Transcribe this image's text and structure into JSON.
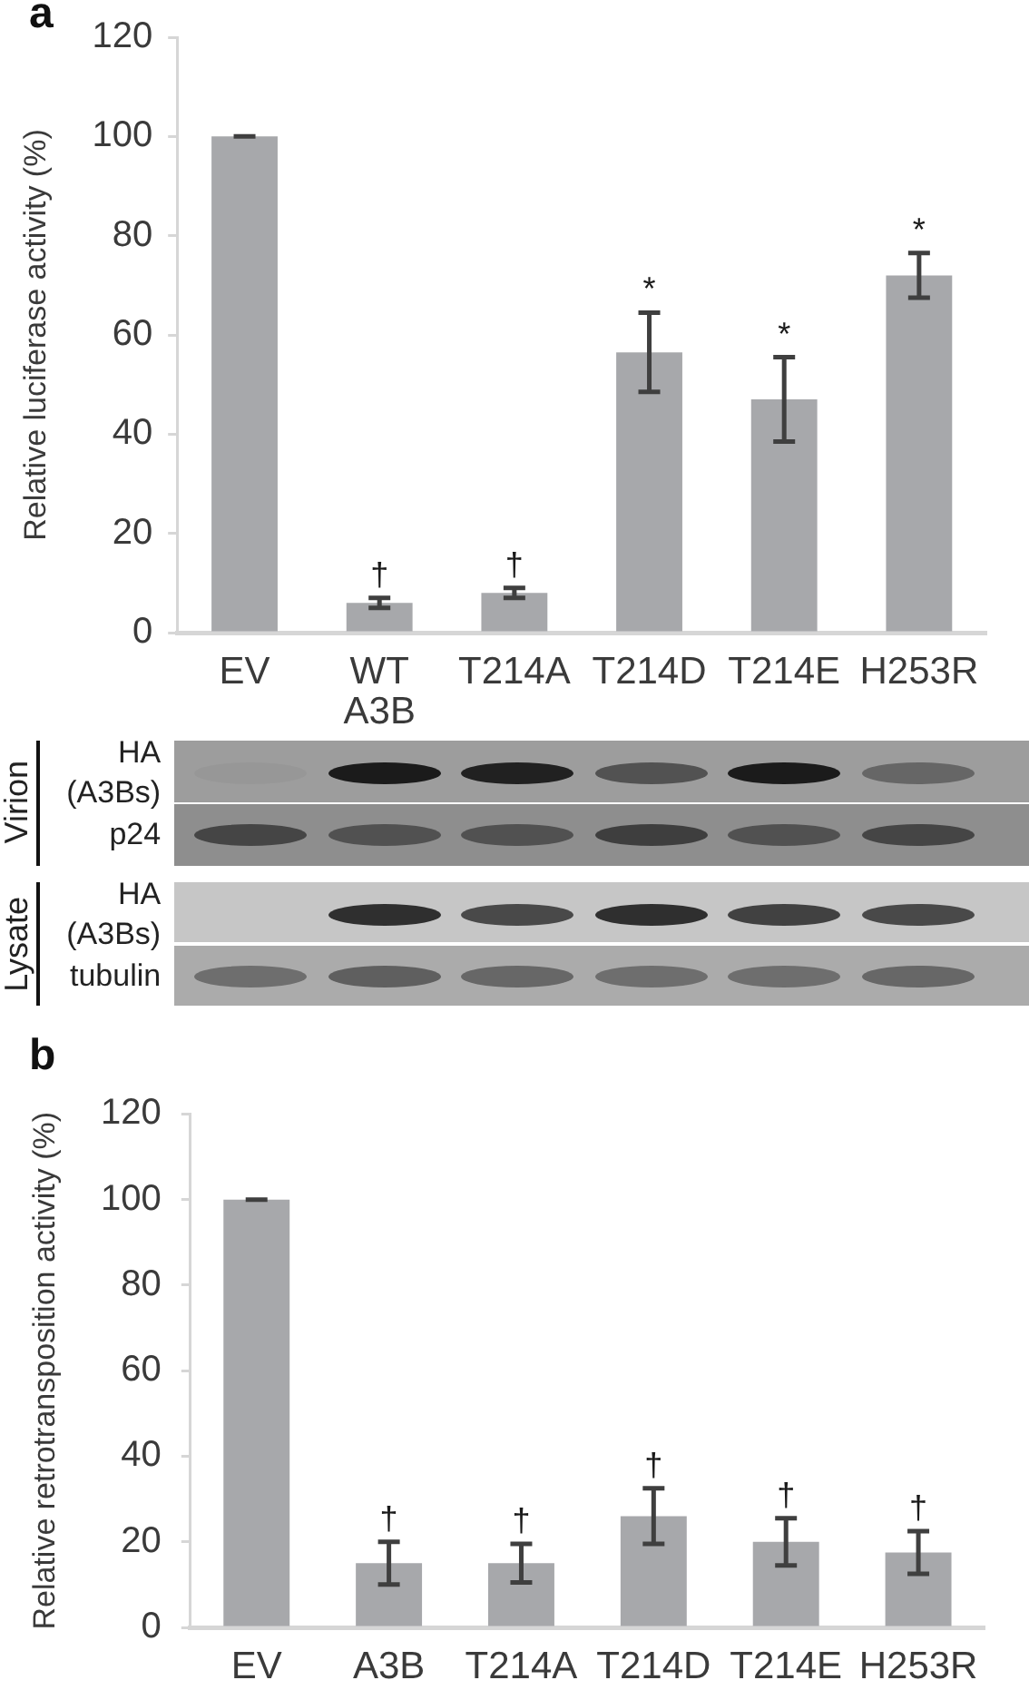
{
  "chart_data": [
    {
      "type": "bar",
      "title": "a",
      "ylabel": "Relative luciferase activity (%)",
      "categories": [
        "EV",
        "WT A3B",
        "T214A",
        "T214D",
        "T214E",
        "H253R"
      ],
      "values": [
        100,
        6,
        8,
        56.5,
        47,
        72
      ],
      "errors": [
        0,
        1,
        1,
        8,
        8.5,
        4.5
      ],
      "color": "#a7a8ab",
      "ylim": [
        0,
        120
      ],
      "yticks": [
        0,
        20,
        40,
        60,
        80,
        100,
        120
      ],
      "annotations": [
        {
          "text": "†",
          "x": "WT A3B",
          "y": 6
        },
        {
          "text": "†",
          "x": "T214A",
          "y": 8
        },
        {
          "text": "*",
          "x": "T214D",
          "y": 56.5
        },
        {
          "text": "*",
          "x": "T214E",
          "y": 47
        },
        {
          "text": "*",
          "x": "H253R",
          "y": 72
        }
      ]
    },
    {
      "type": "other",
      "annotations": [
        "Virion",
        "HA (A3Bs)",
        "p24",
        "Lysate",
        "HA (A3Bs)",
        "tubulin"
      ]
    },
    {
      "type": "bar",
      "title": "b",
      "ylabel": "Relative retrotransposition activity (%)",
      "categories": [
        "EV",
        "A3B",
        "T214A",
        "T214D",
        "T214E",
        "H253R"
      ],
      "values": [
        100,
        15,
        15,
        26,
        20,
        17.5
      ],
      "errors": [
        0,
        5,
        4.5,
        6.5,
        5.5,
        5
      ],
      "color": "#a7a8ab",
      "ylim": [
        0,
        120
      ],
      "yticks": [
        0,
        20,
        40,
        60,
        80,
        100,
        120
      ],
      "annotations": [
        {
          "text": "†",
          "x": "A3B",
          "y": 15
        },
        {
          "text": "†",
          "x": "T214A",
          "y": 15
        },
        {
          "text": "†",
          "x": "T214D",
          "y": 26
        },
        {
          "text": "†",
          "x": "T214E",
          "y": 20
        },
        {
          "text": "†",
          "x": "H253R",
          "y": 17.5
        }
      ]
    }
  ]
}
